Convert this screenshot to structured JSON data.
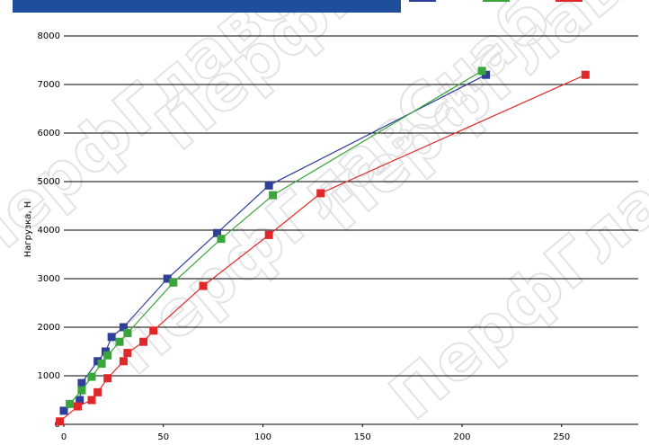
{
  "chart_data": {
    "type": "scatter",
    "title": "",
    "xlabel": "",
    "ylabel": "Нагрузка, Н",
    "xlim": [
      0,
      290
    ],
    "ylim": [
      0,
      8000
    ],
    "xticks": [
      0,
      50,
      100,
      150,
      200,
      250
    ],
    "yticks": [
      0,
      1000,
      2000,
      3000,
      4000,
      5000,
      6000,
      7000,
      8000
    ],
    "grid": "horizontal",
    "legend": "top-right",
    "series": [
      {
        "color": "#2e3f9a",
        "points": [
          [
            0,
            280
          ],
          [
            8,
            500
          ],
          [
            9,
            850
          ],
          [
            17,
            1300
          ],
          [
            21,
            1500
          ],
          [
            24,
            1800
          ],
          [
            30,
            2000
          ],
          [
            52,
            3000
          ],
          [
            77,
            3940
          ],
          [
            103,
            4920
          ],
          [
            212,
            7200
          ]
        ]
      },
      {
        "color": "#3aa53a",
        "points": [
          [
            3,
            420
          ],
          [
            9,
            700
          ],
          [
            14,
            980
          ],
          [
            19,
            1250
          ],
          [
            22,
            1420
          ],
          [
            28,
            1700
          ],
          [
            32,
            1880
          ],
          [
            55,
            2920
          ],
          [
            79,
            3820
          ],
          [
            105,
            4720
          ],
          [
            210,
            7280
          ]
        ]
      },
      {
        "color": "#e0282a",
        "points": [
          [
            -2,
            60
          ],
          [
            7,
            370
          ],
          [
            14,
            500
          ],
          [
            17,
            660
          ],
          [
            22,
            950
          ],
          [
            30,
            1300
          ],
          [
            32,
            1470
          ],
          [
            40,
            1700
          ],
          [
            45,
            1930
          ],
          [
            70,
            2850
          ],
          [
            103,
            3900
          ],
          [
            129,
            4760
          ],
          [
            262,
            7200
          ]
        ]
      }
    ]
  },
  "watermark": "ПерфГлавСнаб"
}
